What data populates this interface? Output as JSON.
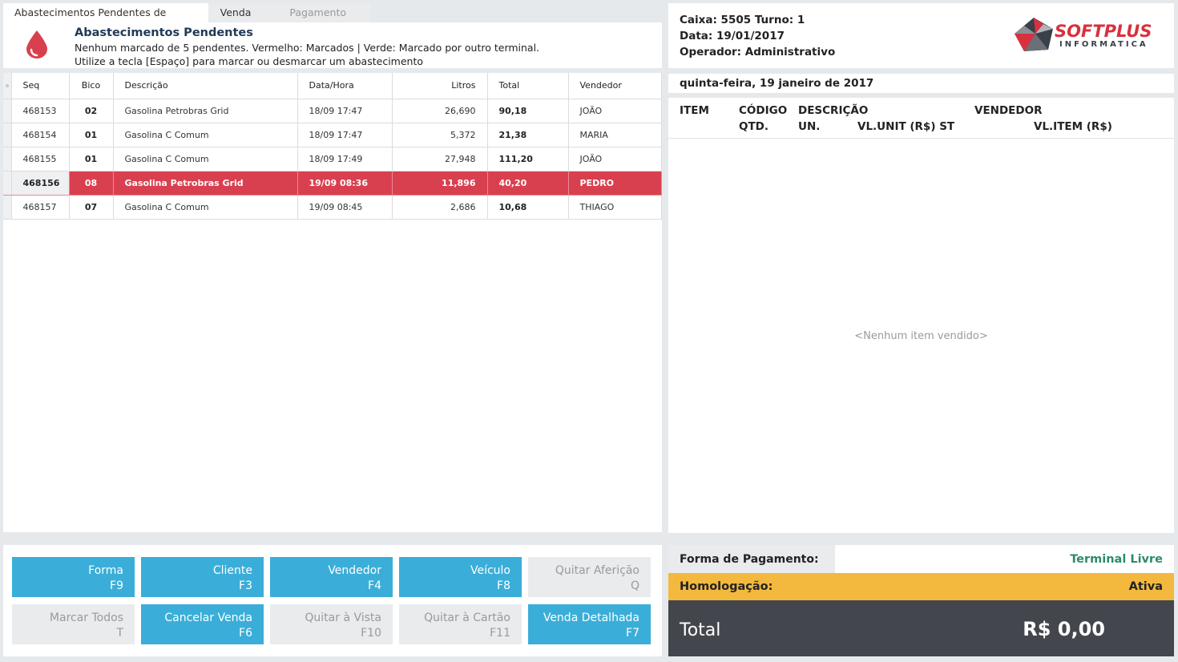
{
  "tabs": [
    {
      "label": "Abastecimentos Pendentes de Quitação"
    },
    {
      "label": "Venda"
    },
    {
      "label": "Pagamento"
    }
  ],
  "header": {
    "title": "Abastecimentos Pendentes",
    "line1": "Nenhum marcado de 5 pendentes. Vermelho: Marcados | Verde: Marcado por outro terminal.",
    "line2": "Utilize a tecla [Espaço] para marcar ou desmarcar um abastecimento"
  },
  "grid": {
    "columns": [
      "Seq",
      "Bico",
      "Descrição",
      "Data/Hora",
      "Litros",
      "Total",
      "Vendedor"
    ],
    "rows": [
      {
        "seq": "468153",
        "bico": "02",
        "descricao": "Gasolina Petrobras Grid",
        "datahora": "18/09 17:47",
        "litros": "26,690",
        "total": "90,18",
        "vendedor": "JOÃO"
      },
      {
        "seq": "468154",
        "bico": "01",
        "descricao": "Gasolina C Comum",
        "datahora": "18/09 17:47",
        "litros": "5,372",
        "total": "21,38",
        "vendedor": "MARIA"
      },
      {
        "seq": "468155",
        "bico": "01",
        "descricao": "Gasolina C Comum",
        "datahora": "18/09 17:49",
        "litros": "27,948",
        "total": "111,20",
        "vendedor": "JOÃO"
      },
      {
        "seq": "468156",
        "bico": "08",
        "descricao": "Gasolina Petrobras Grid",
        "datahora": "19/09 08:36",
        "litros": "11,896",
        "total": "40,20",
        "vendedor": "PEDRO"
      },
      {
        "seq": "468157",
        "bico": "07",
        "descricao": "Gasolina C Comum",
        "datahora": "19/09 08:45",
        "litros": "2,686",
        "total": "10,68",
        "vendedor": "THIAGO"
      }
    ]
  },
  "buttons": {
    "forma": {
      "label": "Forma",
      "key": "F9"
    },
    "cliente": {
      "label": "Cliente",
      "key": "F3"
    },
    "vendedor": {
      "label": "Vendedor",
      "key": "F4"
    },
    "veiculo": {
      "label": "Veículo",
      "key": "F8"
    },
    "quitar_afericao": {
      "label": "Quitar Aferição",
      "key": "Q"
    },
    "marcar_todos": {
      "label": "Marcar Todos",
      "key": "T"
    },
    "cancelar_venda": {
      "label": "Cancelar Venda",
      "key": "F6"
    },
    "quitar_vista": {
      "label": "Quitar à Vista",
      "key": "F10"
    },
    "quitar_cartao": {
      "label": "Quitar à Cartão",
      "key": "F11"
    },
    "venda_detalhada": {
      "label": "Venda Detalhada",
      "key": "F7"
    }
  },
  "info": {
    "caixa": "Caixa: 5505 Turno: 1",
    "data": "Data: 19/01/2017",
    "operador": "Operador: Administrativo",
    "logo_main": "SOFTPLUS",
    "logo_sub": "INFORMATICA"
  },
  "date_line": "quinta-feira, 19 janeiro de 2017",
  "items_header": {
    "item": "ITEM",
    "codigo": "CÓDIGO",
    "descricao": "DESCRIÇÃO",
    "vendedor": "VENDEDOR",
    "qtd": "QTD.",
    "un": "UN.",
    "vlunit": "VL.UNIT (R$) ST",
    "vlitem": "VL.ITEM (R$)"
  },
  "items_empty": "<Nenhum item vendido>",
  "payment": {
    "label": "Forma de Pagamento:",
    "status": "Terminal Livre",
    "homol_label": "Homologação:",
    "homol_value": "Ativa",
    "total_label": "Total",
    "total_value": "R$ 0,00"
  },
  "colors": {
    "accent_blue": "#3aaed8",
    "selected_red": "#d9404f",
    "homol_yellow": "#f3b83e",
    "total_dark": "#43474d",
    "status_green": "#2d8a6a"
  }
}
